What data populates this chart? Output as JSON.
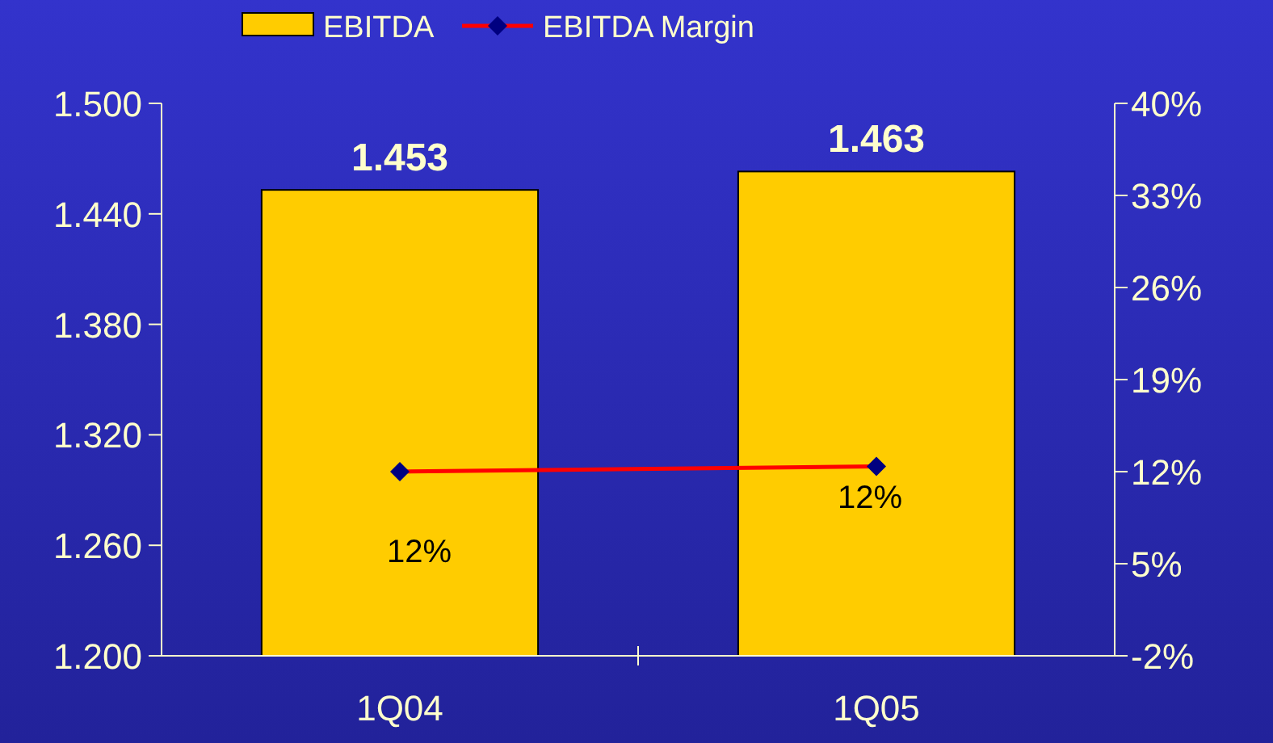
{
  "chart_data": {
    "type": "bar",
    "categories": [
      "1Q04",
      "1Q05"
    ],
    "series": [
      {
        "name": "EBITDA",
        "color": "#ffcc00",
        "values": [
          1.453,
          1.463
        ],
        "value_labels": [
          "1.453",
          "1.463"
        ]
      },
      {
        "name": "EBITDA Margin",
        "type": "line",
        "axis": "y2",
        "color": "#ff0000",
        "values": [
          12,
          12.4
        ],
        "value_labels": [
          "12%",
          "12%"
        ]
      }
    ],
    "ylim": [
      1.2,
      1.5
    ],
    "yticks": [
      {
        "value": 1.2,
        "label": "1.200"
      },
      {
        "value": 1.26,
        "label": "1.260"
      },
      {
        "value": 1.32,
        "label": "1.320"
      },
      {
        "value": 1.38,
        "label": "1.380"
      },
      {
        "value": 1.44,
        "label": "1.440"
      },
      {
        "value": 1.5,
        "label": "1.500"
      }
    ],
    "y2lim": [
      -2,
      40
    ],
    "y2ticks": [
      {
        "value": -2,
        "label": "-2%"
      },
      {
        "value": 5,
        "label": "5%"
      },
      {
        "value": 12,
        "label": "12%"
      },
      {
        "value": 19,
        "label": "19%"
      },
      {
        "value": 26,
        "label": "26%"
      },
      {
        "value": 33,
        "label": "33%"
      },
      {
        "value": 40,
        "label": "40%"
      }
    ],
    "legend": "top",
    "marker": "diamond",
    "grid": false
  }
}
